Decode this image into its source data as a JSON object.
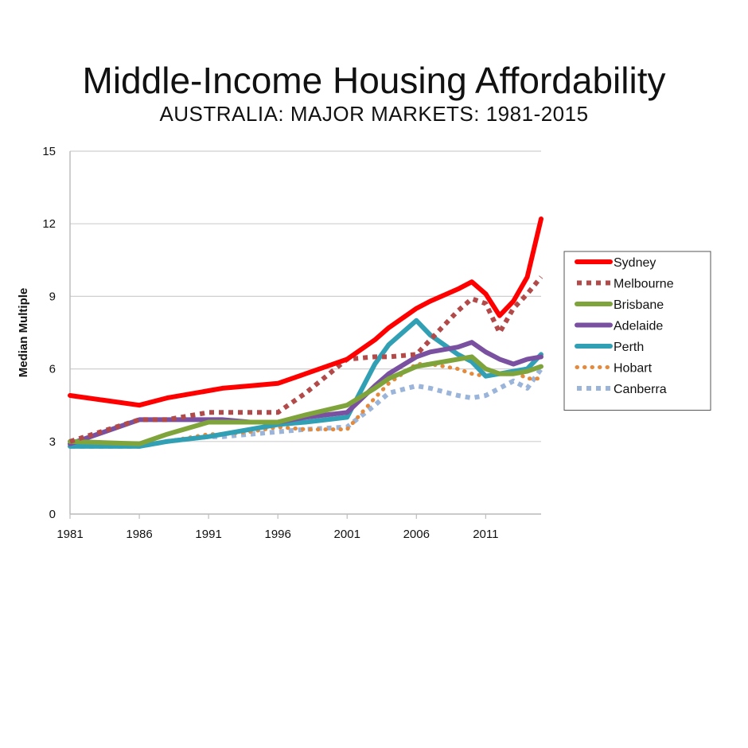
{
  "chart_data": {
    "type": "line",
    "title": "Middle-Income Housing Affordability",
    "subtitle": "AUSTRALIA: MAJOR MARKETS: 1981-2015",
    "ylabel": "Median Multiple",
    "xlabel": "",
    "ylim": [
      0,
      15
    ],
    "xlim": [
      1981,
      2015
    ],
    "yticks": [
      0,
      3,
      6,
      9,
      12,
      15
    ],
    "xticks": [
      1981,
      1986,
      1991,
      1996,
      2001,
      2006,
      2011
    ],
    "grid": "horizontal",
    "legend_position": "right",
    "x": [
      1981,
      1986,
      1988,
      1991,
      1992,
      1994,
      1996,
      1998,
      2001,
      2003,
      2004,
      2006,
      2007,
      2009,
      2010,
      2011,
      2012,
      2013,
      2014,
      2015
    ],
    "series": [
      {
        "name": "Sydney",
        "color": "#ff0000",
        "style": "solid",
        "values": [
          4.9,
          4.5,
          4.8,
          5.1,
          5.2,
          5.3,
          5.4,
          5.8,
          6.4,
          7.2,
          7.7,
          8.5,
          8.8,
          9.3,
          9.6,
          9.1,
          8.2,
          8.8,
          9.8,
          12.2
        ]
      },
      {
        "name": "Melbourne",
        "color": "#b24a4a",
        "style": "square-dot",
        "values": [
          3.0,
          3.9,
          3.9,
          4.2,
          4.2,
          4.2,
          4.2,
          5.0,
          6.4,
          6.5,
          6.5,
          6.6,
          7.2,
          8.4,
          8.9,
          8.7,
          7.5,
          8.5,
          9.1,
          9.8
        ]
      },
      {
        "name": "Brisbane",
        "color": "#80a43c",
        "style": "solid",
        "values": [
          3.0,
          2.9,
          3.3,
          3.8,
          3.8,
          3.8,
          3.8,
          4.1,
          4.5,
          5.2,
          5.6,
          6.1,
          6.2,
          6.4,
          6.5,
          6.0,
          5.8,
          5.8,
          5.9,
          6.1
        ]
      },
      {
        "name": "Adelaide",
        "color": "#7a51a0",
        "style": "solid",
        "values": [
          2.9,
          3.9,
          3.9,
          3.9,
          3.9,
          3.8,
          3.8,
          4.0,
          4.2,
          5.3,
          5.8,
          6.5,
          6.7,
          6.9,
          7.1,
          6.7,
          6.4,
          6.2,
          6.4,
          6.5
        ]
      },
      {
        "name": "Perth",
        "color": "#31a0b4",
        "style": "solid",
        "values": [
          2.8,
          2.8,
          3.0,
          3.2,
          3.3,
          3.5,
          3.7,
          3.8,
          4.0,
          6.2,
          7.0,
          8.0,
          7.4,
          6.6,
          6.3,
          5.7,
          5.8,
          5.9,
          6.0,
          6.6
        ]
      },
      {
        "name": "Hobart",
        "color": "#e48a3c",
        "style": "dot",
        "values": [
          2.8,
          2.8,
          3.0,
          3.3,
          3.3,
          3.4,
          3.6,
          3.5,
          3.5,
          4.8,
          5.4,
          6.2,
          6.2,
          6.0,
          5.8,
          5.7,
          5.8,
          5.9,
          5.6,
          5.6
        ]
      },
      {
        "name": "Canberra",
        "color": "#9ab4da",
        "style": "square-dot",
        "values": [
          2.8,
          2.8,
          3.0,
          3.2,
          3.2,
          3.3,
          3.4,
          3.5,
          3.6,
          4.5,
          5.0,
          5.3,
          5.2,
          4.9,
          4.8,
          4.9,
          5.2,
          5.5,
          5.2,
          6.0
        ]
      }
    ]
  }
}
